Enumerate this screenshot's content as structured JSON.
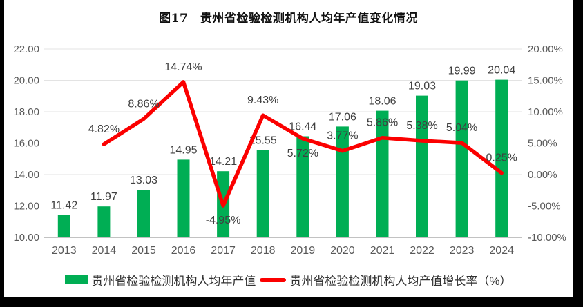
{
  "frame": {
    "background": "#000000",
    "panel_background": "#FFFFFF"
  },
  "title": "图17　贵州省检验检测机构人均年产值变化情况",
  "chart_data": {
    "type": "combo-bar-line",
    "title": "图17　贵州省检验检测机构人均年产值变化情况",
    "categories": [
      "2013",
      "2014",
      "2015",
      "2016",
      "2017",
      "2018",
      "2019",
      "2020",
      "2021",
      "2022",
      "2023",
      "2024"
    ],
    "series": [
      {
        "name": "贵州省检验检测机构人均年产值",
        "chart_type": "bar",
        "axis": "left",
        "color": "#00AE54",
        "values": [
          11.42,
          11.97,
          13.03,
          14.95,
          14.21,
          15.55,
          16.44,
          17.06,
          18.06,
          19.03,
          19.99,
          20.04
        ],
        "labels": [
          "11.42",
          "11.97",
          "13.03",
          "14.95",
          "14.21",
          "15.55",
          "16.44",
          "17.06",
          "18.06",
          "19.03",
          "19.99",
          "20.04"
        ]
      },
      {
        "name": "贵州省检验检测机构人均产值增长率（%）",
        "chart_type": "line",
        "axis": "right",
        "color": "#FB0000",
        "values": [
          null,
          4.82,
          8.86,
          14.74,
          -4.95,
          9.43,
          5.72,
          3.77,
          5.86,
          5.38,
          5.04,
          0.25
        ],
        "labels": [
          "",
          "4.82%",
          "8.86%",
          "14.74%",
          "-4.95%",
          "9.43%",
          "5.72%",
          "3.77%",
          "5.86%",
          "5.38%",
          "5.04%",
          "0.25%"
        ]
      }
    ],
    "left_axis": {
      "min": 10,
      "max": 22,
      "step": 2,
      "ticks": [
        "22.00",
        "20.00",
        "18.00",
        "16.00",
        "14.00",
        "12.00",
        "10.00"
      ]
    },
    "right_axis": {
      "min": -10,
      "max": 20,
      "step": 5,
      "ticks": [
        "20.00%",
        "15.00%",
        "10.00%",
        "5.00%",
        "0.00%",
        "-5.00%",
        "-10.00%"
      ]
    },
    "grid": true,
    "legend_position": "bottom"
  },
  "legend": {
    "items": [
      {
        "label": "贵州省检验检测机构人均年产值",
        "swatch": "bar",
        "color": "#00AE54"
      },
      {
        "label": "贵州省检验检测机构人均产值增长率（%）",
        "swatch": "line",
        "color": "#FB0000"
      }
    ]
  },
  "colors": {
    "grid": "#E3E3E3",
    "axis_line": "#C2C2C2",
    "tick_text": "#595959",
    "data_label_text": "#404040",
    "title_text": "#111111"
  }
}
